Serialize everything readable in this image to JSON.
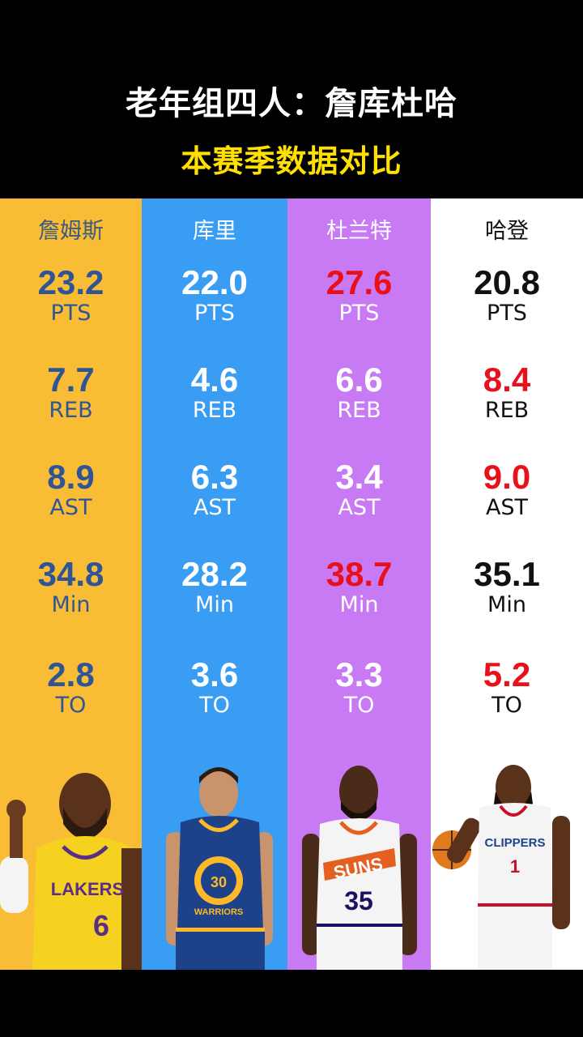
{
  "header": {
    "title": "老年组四人：詹库杜哈",
    "subtitle": "本赛季数据对比"
  },
  "colors": {
    "lebron_bg": "#f8bd34",
    "curry_bg": "#3a9df4",
    "durant_bg": "#c879f4",
    "harden_bg": "#ffffff",
    "highlight_red": "#e8101a",
    "lebron_text": "#2f5597",
    "white_text": "#ffffff",
    "black_text": "#111111"
  },
  "players": [
    {
      "name": "詹姆斯",
      "stats": [
        {
          "value": "23.2",
          "label": "PTS"
        },
        {
          "value": "7.7",
          "label": "REB"
        },
        {
          "value": "8.9",
          "label": "AST"
        },
        {
          "value": "34.8",
          "label": "Min"
        },
        {
          "value": "2.8",
          "label": "TO"
        }
      ],
      "jersey": {
        "team": "LAKERS",
        "number": "6"
      }
    },
    {
      "name": "库里",
      "stats": [
        {
          "value": "22.0",
          "label": "PTS"
        },
        {
          "value": "4.6",
          "label": "REB"
        },
        {
          "value": "6.3",
          "label": "AST"
        },
        {
          "value": "28.2",
          "label": "Min"
        },
        {
          "value": "3.6",
          "label": "TO"
        }
      ],
      "jersey": {
        "team": "WARRIORS",
        "number": "30"
      }
    },
    {
      "name": "杜兰特",
      "stats": [
        {
          "value": "27.6",
          "label": "PTS"
        },
        {
          "value": "6.6",
          "label": "REB"
        },
        {
          "value": "3.4",
          "label": "AST"
        },
        {
          "value": "38.7",
          "label": "Min"
        },
        {
          "value": "3.3",
          "label": "TO"
        }
      ],
      "jersey": {
        "team": "SUNS",
        "number": "35"
      }
    },
    {
      "name": "哈登",
      "stats": [
        {
          "value": "20.8",
          "label": "PTS"
        },
        {
          "value": "8.4",
          "label": "REB"
        },
        {
          "value": "9.0",
          "label": "AST"
        },
        {
          "value": "35.1",
          "label": "Min"
        },
        {
          "value": "5.2",
          "label": "TO"
        }
      ],
      "jersey": {
        "team": "CLIPPERS",
        "number": "1"
      }
    }
  ]
}
